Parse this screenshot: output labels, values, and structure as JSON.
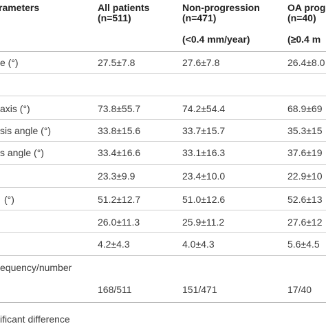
{
  "header": {
    "col_param": "rameters",
    "col_all_title": "All patients",
    "col_all_n": "(n=511)",
    "col_nonprog_title": "Non-progression",
    "col_nonprog_n": "(n=471)",
    "col_nonprog_rate": "(<0.4 mm/year)",
    "col_oa_title": "OA prog",
    "col_oa_n": "(n=40)",
    "col_oa_rate": "(≥0.4 m"
  },
  "rows": [
    {
      "label": "e (°)",
      "all": "27.5±7.8",
      "nonprog": "27.6±7.8",
      "oa": "26.4±8.0"
    },
    {
      "label": "",
      "all": "",
      "nonprog": "",
      "oa": ""
    },
    {
      "label": "axis (°)",
      "all": "73.8±55.7",
      "nonprog": "74.2±54.4",
      "oa": "68.9±69"
    },
    {
      "label": "sis angle (°)",
      "all": "33.8±15.6",
      "nonprog": "33.7±15.7",
      "oa": "35.3±15"
    },
    {
      "label": "s angle (°)",
      "all": "33.4±16.6",
      "nonprog": "33.1±16.3",
      "oa": "37.6±19"
    },
    {
      "label": "",
      "all": "23.3±9.9",
      "nonprog": "23.4±10.0",
      "oa": "22.9±10"
    },
    {
      "label": "(°)",
      "all": "51.2±12.7",
      "nonprog": "51.0±12.6",
      "oa": "52.6±13"
    },
    {
      "label": "",
      "all": "26.0±11.3",
      "nonprog": "25.9±11.2",
      "oa": "27.6±12"
    },
    {
      "label": "",
      "all": "4.2±4.3",
      "nonprog": "4.0±4.3",
      "oa": "5.6±4.5"
    }
  ],
  "frequency": {
    "label": "equency/number",
    "all": "168/511",
    "nonprog": "151/471",
    "oa": "17/40"
  },
  "footnote": "ificant difference"
}
